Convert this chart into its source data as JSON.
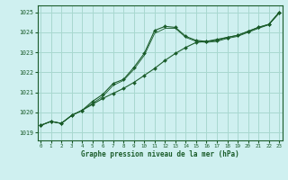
{
  "title": "Graphe pression niveau de la mer (hPa)",
  "bg_color": "#cff0f0",
  "grid_color": "#a8d8d0",
  "line_color": "#1a5c2a",
  "ylim": [
    1018.6,
    1025.35
  ],
  "xlim": [
    -0.3,
    23.3
  ],
  "yticks": [
    1019,
    1020,
    1021,
    1022,
    1023,
    1024,
    1025
  ],
  "xticks": [
    0,
    1,
    2,
    3,
    4,
    5,
    6,
    7,
    8,
    9,
    10,
    11,
    12,
    13,
    14,
    15,
    16,
    17,
    18,
    19,
    20,
    21,
    22,
    23
  ],
  "line1_x": [
    0,
    1,
    2,
    3,
    4,
    5,
    6,
    7,
    8,
    9,
    10,
    11,
    12,
    13,
    14,
    15,
    16,
    17,
    18,
    19,
    20,
    21,
    22,
    23
  ],
  "line1_y": [
    1019.35,
    1019.55,
    1019.45,
    1019.85,
    1020.1,
    1020.4,
    1020.7,
    1020.95,
    1021.2,
    1021.5,
    1021.85,
    1022.2,
    1022.6,
    1022.95,
    1023.25,
    1023.5,
    1023.55,
    1023.65,
    1023.75,
    1023.85,
    1024.05,
    1024.25,
    1024.4,
    1025.0
  ],
  "line2_x": [
    0,
    1,
    2,
    3,
    4,
    5,
    6,
    7,
    8,
    9,
    10,
    11,
    12,
    13,
    14,
    15,
    16,
    17,
    18,
    19,
    20,
    21,
    22,
    23
  ],
  "line2_y": [
    1019.35,
    1019.55,
    1019.45,
    1019.85,
    1020.1,
    1020.55,
    1020.9,
    1021.45,
    1021.65,
    1022.25,
    1022.95,
    1024.1,
    1024.3,
    1024.25,
    1023.8,
    1023.6,
    1023.55,
    1023.6,
    1023.75,
    1023.85,
    1024.05,
    1024.25,
    1024.4,
    1025.0
  ],
  "line3_x": [
    0,
    1,
    2,
    3,
    4,
    5,
    6,
    7,
    8,
    9,
    10,
    11,
    12,
    13,
    14,
    15,
    16,
    17,
    18,
    19,
    20,
    21,
    22,
    23
  ],
  "line3_y": [
    1019.35,
    1019.55,
    1019.45,
    1019.85,
    1020.1,
    1020.45,
    1020.8,
    1021.35,
    1021.6,
    1022.15,
    1022.85,
    1023.95,
    1024.2,
    1024.2,
    1023.75,
    1023.55,
    1023.5,
    1023.55,
    1023.7,
    1023.8,
    1024.0,
    1024.2,
    1024.38,
    1024.95
  ]
}
